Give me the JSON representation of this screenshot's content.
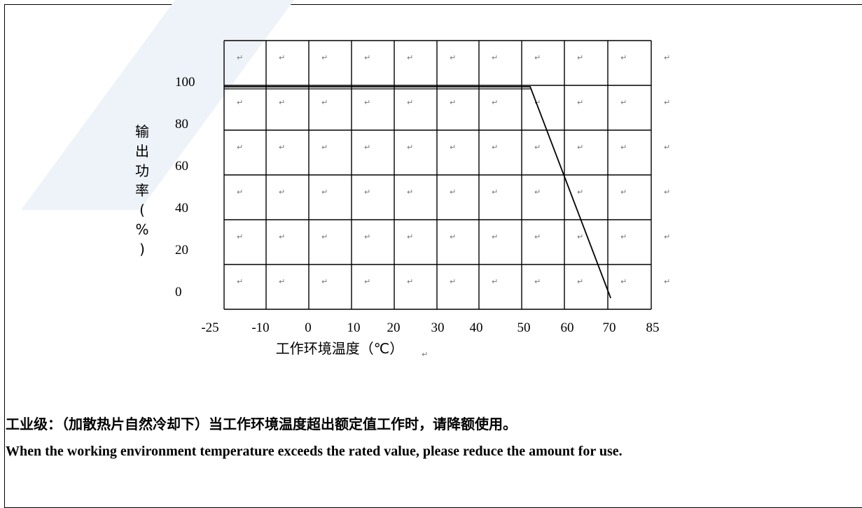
{
  "chart_data": {
    "type": "line",
    "x_ticks": [
      "-25",
      "-10",
      "0",
      "10",
      "20",
      "30",
      "40",
      "50",
      "60",
      "70",
      "85"
    ],
    "y_ticks": [
      "0",
      "20",
      "40",
      "60",
      "80",
      "100"
    ],
    "ylabel": "输出功率(%)",
    "xlabel": "工作环境温度（℃）",
    "x": [
      -25,
      52,
      71
    ],
    "y": [
      100,
      100,
      0
    ],
    "ylim": [
      0,
      100
    ],
    "grid": true,
    "cell_mark": "↵"
  },
  "notes": {
    "chinese": "工业级：（加散热片自然冷却下）当工作环境温度超出额定值工作时，请降额使用。",
    "english": "When the working environment temperature exceeds the rated value, please reduce the amount for use."
  },
  "colors": {
    "grid": "#000000",
    "line": "#000000",
    "watermark": "#e6eef8"
  }
}
